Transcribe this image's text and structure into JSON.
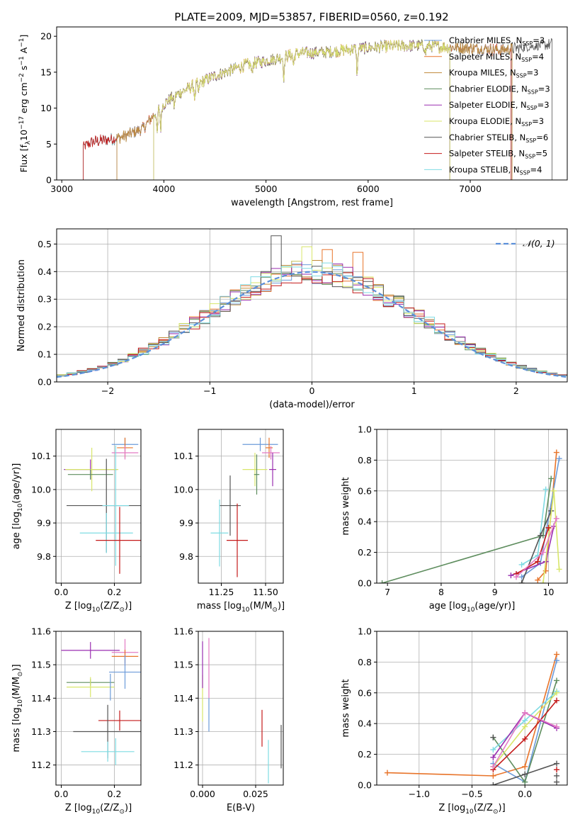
{
  "figure_title": "PLATE=2009, MJD=53857, FIBERID=0560, z=0.192",
  "colors": {
    "Chabrier MILES": "#6c9bd9",
    "Salpeter MILES": "#e8742a",
    "Kroupa MILES": "#c08a3a",
    "Chabrier ELODIE": "#5e8d5e",
    "Salpeter ELODIE": "#9a2fb0",
    "Kroupa ELODIE": "#d8e66a",
    "Chabrier STELIB": "#555555",
    "Salpeter STELIB": "#c41a1a",
    "Kroupa STELIB": "#7fdbe3",
    "normal_fit": "#5b8fd9",
    "pink": "#e37bc4"
  },
  "chart_data": [
    {
      "id": "spectrum",
      "type": "line",
      "title": "PLATE=2009, MJD=53857, FIBERID=0560, z=0.192",
      "xlabel": "wavelength [Angstrom, rest frame]",
      "ylabel_parts": [
        "Flux [f",
        "λ",
        "10",
        "−17",
        " erg cm",
        "−2",
        " s",
        "−1",
        " A",
        "−1",
        "]"
      ],
      "xlim": [
        2950,
        7950
      ],
      "ylim": [
        0,
        21.3
      ],
      "xticks": [
        3000,
        4000,
        5000,
        6000,
        7000
      ],
      "yticks": [
        0,
        5,
        10,
        15,
        20
      ],
      "grid": false,
      "legend_position": "upper-right",
      "legend": [
        {
          "base": "Chabrier MILES, N",
          "sub": "SSP",
          "tail": "=3",
          "color_key": "Chabrier MILES"
        },
        {
          "base": "Salpeter MILES, N",
          "sub": "SSP",
          "tail": "=4",
          "color_key": "Salpeter MILES"
        },
        {
          "base": "Kroupa MILES, N",
          "sub": "SSP",
          "tail": "=3",
          "color_key": "Kroupa MILES"
        },
        {
          "base": "Chabrier ELODIE, N",
          "sub": "SSP",
          "tail": "=3",
          "color_key": "Chabrier ELODIE"
        },
        {
          "base": "Salpeter ELODIE, N",
          "sub": "SSP",
          "tail": "=3",
          "color_key": "Salpeter ELODIE"
        },
        {
          "base": "Kroupa ELODIE, N",
          "sub": "SSP",
          "tail": "=3",
          "color_key": "Kroupa ELODIE"
        },
        {
          "base": "Chabrier STELIB, N",
          "sub": "SSP",
          "tail": "=6",
          "color_key": "Chabrier STELIB"
        },
        {
          "base": "Salpeter STELIB, N",
          "sub": "SSP",
          "tail": "=5",
          "color_key": "Salpeter STELIB"
        },
        {
          "base": "Kroupa STELIB, N",
          "sub": "SSP",
          "tail": "=4",
          "color_key": "Kroupa STELIB"
        }
      ],
      "continuum": {
        "x": [
          3210,
          3300,
          3450,
          3600,
          3800,
          3950,
          4100,
          4300,
          4500,
          4800,
          5100,
          5300,
          5600,
          5900,
          6200,
          6500,
          6800,
          7100,
          7300,
          7550,
          7800
        ],
        "y": [
          4.6,
          5.3,
          5.6,
          6.0,
          7.2,
          10.0,
          11.7,
          13.2,
          14.5,
          16.0,
          16.9,
          17.6,
          17.8,
          18.3,
          18.6,
          18.7,
          18.5,
          18.3,
          18.1,
          18.5,
          18.9
        ]
      },
      "spectrum_ranges": {
        "Chabrier MILES": [
          3540,
          7410
        ],
        "Salpeter MILES": [
          3540,
          7410
        ],
        "Kroupa MILES": [
          3540,
          7410
        ],
        "Chabrier ELODIE": [
          3900,
          6800
        ],
        "Salpeter ELODIE": [
          3900,
          6800
        ],
        "Kroupa ELODIE": [
          3900,
          6800
        ],
        "Chabrier STELIB": [
          3210,
          7800
        ],
        "Salpeter STELIB": [
          3210,
          7400
        ],
        "Kroupa STELIB": [
          3210,
          7400
        ]
      }
    },
    {
      "id": "residuals",
      "type": "line",
      "xlabel": "(data-model)/error",
      "ylabel": "Normed distribution",
      "xlim": [
        -2.5,
        2.5
      ],
      "ylim": [
        0,
        0.555
      ],
      "xticks": [
        -2,
        -1,
        0,
        1,
        2
      ],
      "yticks": [
        0.0,
        0.1,
        0.2,
        0.3,
        0.4,
        0.5
      ],
      "grid": true,
      "legend_position": "upper-right",
      "legend_label": "𝒩(0, 1)",
      "bin_width": 0.1,
      "peak_bins": [
        {
          "x": -0.35,
          "y": 0.53,
          "color_key": "Chabrier STELIB"
        },
        {
          "x": -0.05,
          "y": 0.49,
          "color_key": "Kroupa ELODIE"
        },
        {
          "x": 0.15,
          "y": 0.48,
          "color_key": "Salpeter MILES"
        },
        {
          "x": 0.45,
          "y": 0.47,
          "color_key": "Salpeter MILES"
        }
      ]
    },
    {
      "id": "age-vs-Z",
      "type": "scatter",
      "xlabel_parts": [
        "Z [log",
        "10",
        "(Z/Z",
        "⊙",
        ")]"
      ],
      "ylabel_parts": [
        "age  [log",
        "10",
        "(age/yr)]"
      ],
      "xlim": [
        -0.02,
        0.3
      ],
      "ylim": [
        9.72,
        10.18
      ],
      "xticks": [
        0.0,
        0.2
      ],
      "yticks": [
        9.8,
        9.9,
        10.0,
        10.1
      ],
      "grid": true,
      "points": [
        {
          "x": 0.24,
          "y": 10.135,
          "xerr": 0.05,
          "yerr": 0.02,
          "color_key": "Chabrier MILES"
        },
        {
          "x": 0.24,
          "y": 10.125,
          "xerr": 0.03,
          "yerr": 0.03,
          "color_key": "Salpeter MILES"
        },
        {
          "x": 0.24,
          "y": 10.11,
          "xerr": 0.05,
          "yerr": 0.02,
          "color_key": "pink"
        },
        {
          "x": 0.11,
          "y": 10.06,
          "xerr": 0.1,
          "yerr": 0.03,
          "color_key": "Salpeter ELODIE"
        },
        {
          "x": 0.115,
          "y": 10.06,
          "xerr": 0.1,
          "yerr": 0.065,
          "color_key": "Kroupa ELODIE"
        },
        {
          "x": 0.11,
          "y": 10.045,
          "xerr": 0.085,
          "yerr": 0.015,
          "color_key": "Chabrier ELODIE"
        },
        {
          "x": 0.17,
          "y": 9.952,
          "xerr": 0.15,
          "yerr": 0.14,
          "color_key": "Chabrier STELIB"
        },
        {
          "x": 0.205,
          "y": 9.952,
          "xerr": 0.05,
          "yerr": 0.18,
          "color_key": "Kroupa STELIB"
        },
        {
          "x": 0.17,
          "y": 9.87,
          "xerr": 0.1,
          "yerr": 0.06,
          "color_key": "Kroupa STELIB"
        },
        {
          "x": 0.22,
          "y": 9.848,
          "xerr": 0.09,
          "yerr": 0.1,
          "color_key": "Salpeter STELIB"
        }
      ]
    },
    {
      "id": "age-vs-mass",
      "type": "scatter",
      "xlabel_parts": [
        "mass [log",
        "10",
        "(M/M",
        "⊙",
        ")]"
      ],
      "xlim": [
        11.12,
        11.6
      ],
      "ylim": [
        9.72,
        10.18
      ],
      "xticks": [
        11.25,
        11.5
      ],
      "yticks": [
        9.8,
        9.9,
        10.0,
        10.1
      ],
      "grid": true,
      "points": [
        {
          "x": 11.47,
          "y": 10.135,
          "xerr": 0.1,
          "yerr": 0.02,
          "color_key": "Chabrier MILES"
        },
        {
          "x": 11.52,
          "y": 10.125,
          "xerr": 0.02,
          "yerr": 0.03,
          "color_key": "Salpeter MILES"
        },
        {
          "x": 11.53,
          "y": 10.11,
          "xerr": 0.05,
          "yerr": 0.02,
          "color_key": "pink"
        },
        {
          "x": 11.54,
          "y": 10.06,
          "xerr": 0.02,
          "yerr": 0.05,
          "color_key": "Salpeter ELODIE"
        },
        {
          "x": 11.44,
          "y": 10.06,
          "xerr": 0.07,
          "yerr": 0.05,
          "color_key": "Kroupa ELODIE"
        },
        {
          "x": 11.45,
          "y": 10.045,
          "xerr": 0.015,
          "yerr": 0.06,
          "color_key": "Chabrier ELODIE"
        },
        {
          "x": 11.3,
          "y": 9.952,
          "xerr": 0.06,
          "yerr": 0.09,
          "color_key": "Chabrier STELIB"
        },
        {
          "x": 11.24,
          "y": 9.87,
          "xerr": 0.05,
          "yerr": 0.1,
          "color_key": "Kroupa STELIB"
        },
        {
          "x": 11.34,
          "y": 9.848,
          "xerr": 0.06,
          "yerr": 0.11,
          "color_key": "Salpeter STELIB"
        }
      ]
    },
    {
      "id": "massweight-vs-age",
      "type": "line",
      "xlabel_parts": [
        "age  [log",
        "10",
        "(age/yr)]"
      ],
      "ylabel": "mass weight",
      "xlim": [
        6.8,
        10.35
      ],
      "ylim": [
        0,
        1.0
      ],
      "xticks": [
        7,
        8,
        9,
        10
      ],
      "yticks": [
        0.0,
        0.2,
        0.4,
        0.6,
        0.8,
        1.0
      ],
      "grid": true,
      "series": [
        {
          "color_key": "Chabrier ELODIE",
          "x": [
            6.9,
            9.9,
            10.05
          ],
          "y": [
            0.0,
            0.31,
            0.68
          ]
        },
        {
          "color_key": "Salpeter MILES",
          "x": [
            9.8,
            9.95,
            10.15
          ],
          "y": [
            0.02,
            0.08,
            0.85
          ]
        },
        {
          "color_key": "Chabrier MILES",
          "x": [
            9.5,
            9.85,
            10.2
          ],
          "y": [
            0.04,
            0.13,
            0.81
          ]
        },
        {
          "color_key": "Kroupa STELIB",
          "x": [
            9.5,
            9.8,
            9.95
          ],
          "y": [
            0.12,
            0.18,
            0.61
          ]
        },
        {
          "color_key": "Chabrier STELIB",
          "x": [
            9.5,
            9.85,
            10.05
          ],
          "y": [
            0.0,
            0.31,
            0.47
          ]
        },
        {
          "color_key": "Salpeter ELODIE",
          "x": [
            9.3,
            9.95,
            10.1
          ],
          "y": [
            0.05,
            0.14,
            0.37
          ]
        },
        {
          "color_key": "Kroupa ELODIE",
          "x": [
            9.9,
            10.1,
            10.2
          ],
          "y": [
            0.0,
            0.6,
            0.09
          ]
        },
        {
          "color_key": "Salpeter STELIB",
          "x": [
            9.4,
            9.8,
            10.0
          ],
          "y": [
            0.06,
            0.14,
            0.36
          ]
        },
        {
          "color_key": "pink",
          "x": [
            9.4,
            9.9,
            10.15
          ],
          "y": [
            0.04,
            0.2,
            0.42
          ]
        }
      ]
    },
    {
      "id": "mass-vs-Z",
      "type": "scatter",
      "xlabel_parts": [
        "Z [log",
        "10",
        "(Z/Z",
        "⊙",
        ")]"
      ],
      "ylabel_parts": [
        "mass [log",
        "10",
        "(M/M",
        "⊙",
        ")]"
      ],
      "xlim": [
        -0.02,
        0.3
      ],
      "ylim": [
        11.14,
        11.6
      ],
      "xticks": [
        0.0,
        0.2
      ],
      "yticks": [
        11.2,
        11.3,
        11.4,
        11.5,
        11.6
      ],
      "grid": true,
      "points": [
        {
          "x": 0.11,
          "y": 11.543,
          "xerr": 0.11,
          "yerr": 0.025,
          "color_key": "Salpeter ELODIE"
        },
        {
          "x": 0.24,
          "y": 11.537,
          "xerr": 0.05,
          "yerr": 0.04,
          "color_key": "pink"
        },
        {
          "x": 0.24,
          "y": 11.525,
          "xerr": 0.05,
          "yerr": 0.02,
          "color_key": "Salpeter MILES"
        },
        {
          "x": 0.24,
          "y": 11.478,
          "xerr": 0.06,
          "yerr": 0.05,
          "color_key": "Chabrier MILES"
        },
        {
          "x": 0.11,
          "y": 11.447,
          "xerr": 0.09,
          "yerr": 0.01,
          "color_key": "Chabrier ELODIE"
        },
        {
          "x": 0.11,
          "y": 11.433,
          "xerr": 0.09,
          "yerr": 0.03,
          "color_key": "Kroupa ELODIE"
        },
        {
          "x": 0.185,
          "y": 11.433,
          "xerr": 0.0,
          "yerr": 0.04,
          "color_key": "Chabrier MILES"
        },
        {
          "x": 0.22,
          "y": 11.333,
          "xerr": 0.08,
          "yerr": 0.03,
          "color_key": "Salpeter STELIB"
        },
        {
          "x": 0.175,
          "y": 11.3,
          "xerr": 0.13,
          "yerr": 0.08,
          "color_key": "Chabrier STELIB"
        },
        {
          "x": 0.175,
          "y": 11.24,
          "xerr": 0.1,
          "yerr": 0.03,
          "color_key": "Kroupa STELIB"
        },
        {
          "x": 0.205,
          "y": 11.24,
          "xerr": 0.0,
          "yerr": 0.04,
          "color_key": "Kroupa STELIB"
        }
      ]
    },
    {
      "id": "mass-vs-EBV",
      "type": "scatter",
      "xlabel": "E(B-V)",
      "xlim": [
        -0.002,
        0.038
      ],
      "ylim": [
        11.14,
        11.6
      ],
      "xticks": [
        0.0,
        0.025
      ],
      "yticks": [
        11.2,
        11.3,
        11.4,
        11.5,
        11.6
      ],
      "grid": true,
      "points": [
        {
          "x": 0.0,
          "y": 11.4,
          "xerr": 0.0,
          "yerr": 0.07,
          "color_key": "Kroupa ELODIE"
        },
        {
          "x": 0.0,
          "y": 11.5,
          "xerr": 0.0,
          "yerr": 0.07,
          "color_key": "Salpeter ELODIE"
        },
        {
          "x": 0.003,
          "y": 11.49,
          "xerr": 0.0,
          "yerr": 0.09,
          "color_key": "pink"
        },
        {
          "x": 0.003,
          "y": 11.35,
          "xerr": 0.0,
          "yerr": 0.05,
          "color_key": "Chabrier MILES"
        },
        {
          "x": 0.028,
          "y": 11.31,
          "xerr": 0.0,
          "yerr": 0.055,
          "color_key": "Salpeter STELIB"
        },
        {
          "x": 0.031,
          "y": 11.21,
          "xerr": 0.0,
          "yerr": 0.065,
          "color_key": "Kroupa STELIB"
        },
        {
          "x": 0.037,
          "y": 11.255,
          "xerr": 0.0,
          "yerr": 0.065,
          "color_key": "Chabrier STELIB"
        }
      ]
    },
    {
      "id": "massweight-vs-Z",
      "type": "line",
      "xlabel_parts": [
        "Z [log",
        "10",
        "(Z/Z",
        "⊙",
        ")]"
      ],
      "ylabel": "mass weight",
      "xlim": [
        -1.4,
        0.4
      ],
      "ylim": [
        0,
        1.0
      ],
      "xticks": [
        -1.0,
        -0.5,
        0.0
      ],
      "yticks": [
        0.0,
        0.2,
        0.4,
        0.6,
        0.8,
        1.0
      ],
      "grid": true,
      "series": [
        {
          "color_key": "Salpeter MILES",
          "x": [
            -1.3,
            -0.3,
            0.0,
            0.3
          ],
          "y": [
            0.08,
            0.06,
            0.12,
            0.85
          ]
        },
        {
          "color_key": "Chabrier MILES",
          "x": [
            -0.3,
            0.0,
            0.3
          ],
          "y": [
            0.14,
            0.02,
            0.81
          ]
        },
        {
          "color_key": "Chabrier ELODIE",
          "x": [
            -0.3,
            0.0,
            0.3
          ],
          "y": [
            0.31,
            0.02,
            0.68
          ]
        },
        {
          "color_key": "Kroupa STELIB",
          "x": [
            -0.3,
            0.0,
            0.3
          ],
          "y": [
            0.23,
            0.42,
            0.61
          ]
        },
        {
          "color_key": "Kroupa ELODIE",
          "x": [
            -0.3,
            0.0,
            0.3
          ],
          "y": [
            0.12,
            0.38,
            0.6
          ]
        },
        {
          "color_key": "Salpeter ELODIE",
          "x": [
            -0.3,
            0.0,
            0.3
          ],
          "y": [
            0.18,
            0.47,
            0.37
          ]
        },
        {
          "color_key": "Salpeter STELIB",
          "x": [
            -0.3,
            0.0,
            0.3
          ],
          "y": [
            0.1,
            0.3,
            0.55
          ]
        },
        {
          "color_key": "pink",
          "x": [
            -0.3,
            0.0,
            0.3
          ],
          "y": [
            0.12,
            0.47,
            0.38
          ]
        },
        {
          "color_key": "Chabrier STELIB",
          "x": [
            -0.3,
            0.0,
            0.3
          ],
          "y": [
            0.0,
            0.07,
            0.14
          ]
        }
      ],
      "extra_markers": [
        {
          "color_key": "Chabrier STELIB",
          "x": 0.3,
          "y": 0.02
        },
        {
          "color_key": "Chabrier STELIB",
          "x": 0.3,
          "y": 0.06
        },
        {
          "color_key": "Salpeter STELIB",
          "x": 0.3,
          "y": 0.1
        },
        {
          "color_key": "Chabrier STELIB",
          "x": -0.3,
          "y": 0.31
        }
      ]
    }
  ]
}
